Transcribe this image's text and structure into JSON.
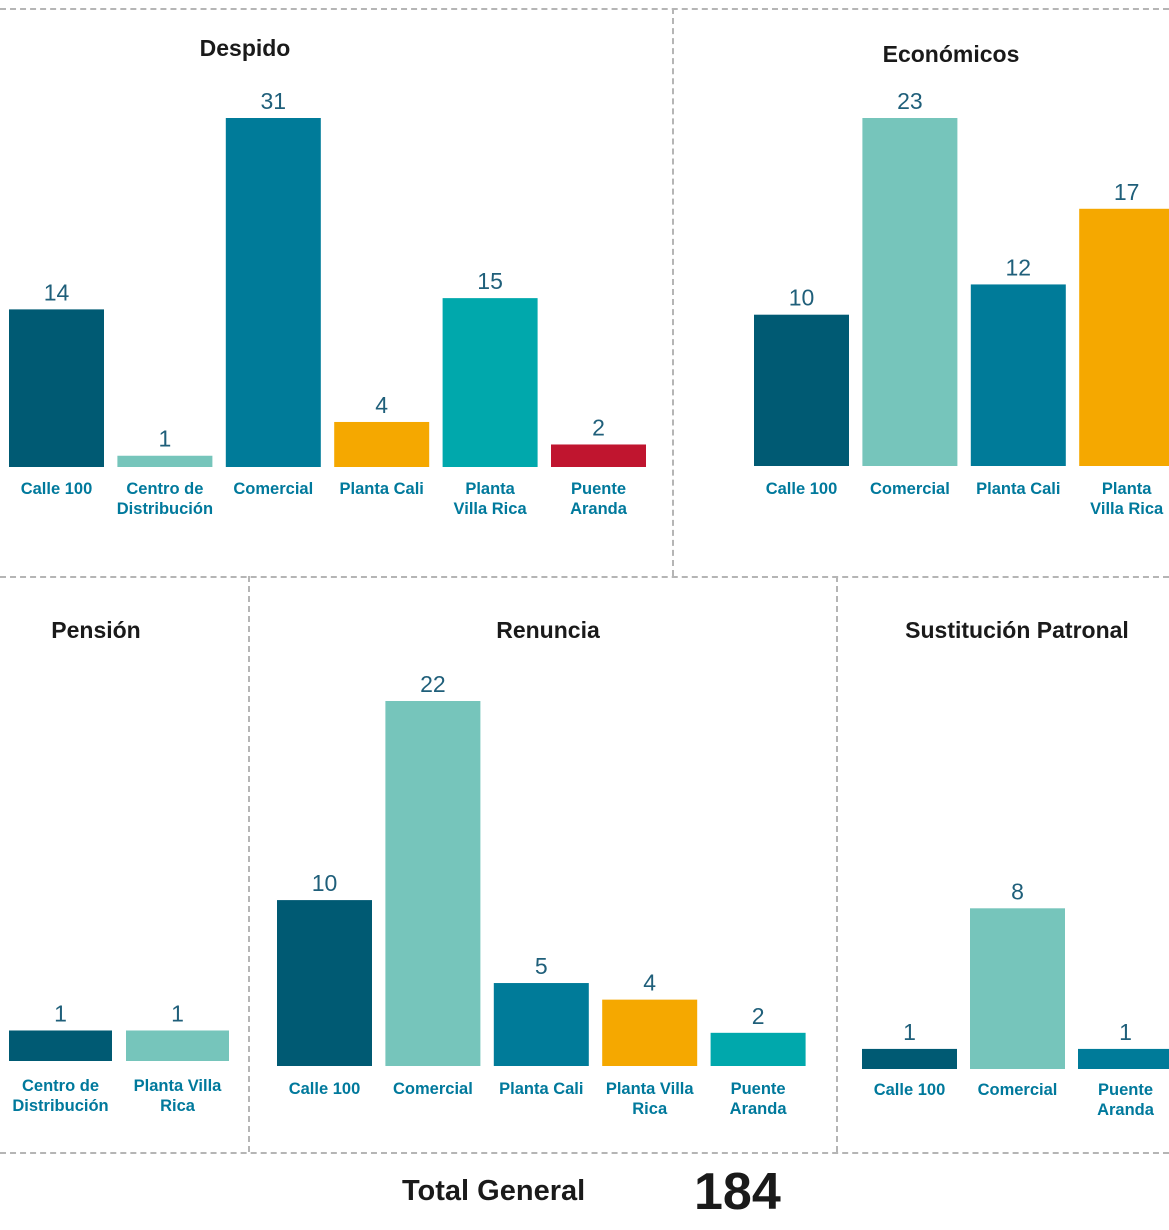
{
  "colors": {
    "Calle 100": "#005a73",
    "Centro de Distribución": "#76c5bb",
    "Comercial": "#007b99",
    "Planta Cali": "#f5a800",
    "Planta Villa Rica": "#00a8ac",
    "Puente Aranda": "#c0152f",
    "value_label": "#1f5f7a",
    "category_label": "#00799c",
    "title": "#1a1a1a"
  },
  "chart_data": [
    {
      "type": "bar",
      "title": "Despido",
      "categories": [
        "Calle 100",
        "Centro de Distribución",
        "Comercial",
        "Planta Cali",
        "Planta Villa Rica",
        "Puente Aranda"
      ],
      "category_lines": [
        [
          "Calle 100"
        ],
        [
          "Centro de",
          "Distribución"
        ],
        [
          "Comercial"
        ],
        [
          "Planta Cali"
        ],
        [
          "Planta",
          "Villa Rica"
        ],
        [
          "Puente",
          "Aranda"
        ]
      ],
      "values": [
        14,
        1,
        31,
        4,
        15,
        2
      ],
      "color_keys": [
        "Calle 100",
        "Centro de Distribución",
        "Comercial",
        "Planta Cali",
        "Planta Villa Rica",
        "Puente Aranda"
      ],
      "ylim": [
        0,
        31
      ],
      "grid": false
    },
    {
      "type": "bar",
      "title": "Económicos",
      "categories": [
        "Calle 100",
        "Comercial",
        "Planta Cali",
        "Planta Villa Rica"
      ],
      "category_lines": [
        [
          "Calle 100"
        ],
        [
          "Comercial"
        ],
        [
          "Planta Cali"
        ],
        [
          "Planta",
          "Villa Rica"
        ]
      ],
      "values": [
        10,
        23,
        12,
        17
      ],
      "color_keys": [
        "Calle 100",
        "Centro de Distribución",
        "Comercial",
        "Planta Cali"
      ],
      "ylim": [
        0,
        23
      ],
      "grid": false
    },
    {
      "type": "bar",
      "title": "Pensión",
      "categories": [
        "Centro de Distribución",
        "Planta Villa Rica"
      ],
      "category_lines": [
        [
          "Centro de",
          "Distribución"
        ],
        [
          "Planta Villa",
          "Rica"
        ]
      ],
      "values": [
        1,
        1
      ],
      "color_keys": [
        "Calle 100",
        "Centro de Distribución"
      ],
      "ylim": [
        0,
        11.5
      ],
      "grid": false
    },
    {
      "type": "bar",
      "title": "Renuncia",
      "categories": [
        "Calle 100",
        "Comercial",
        "Planta Cali",
        "Planta Villa Rica",
        "Puente Aranda"
      ],
      "category_lines": [
        [
          "Calle 100"
        ],
        [
          "Comercial"
        ],
        [
          "Planta Cali"
        ],
        [
          "Planta Villa",
          "Rica"
        ],
        [
          "Puente",
          "Aranda"
        ]
      ],
      "values": [
        10,
        22,
        5,
        4,
        2
      ],
      "color_keys": [
        "Calle 100",
        "Centro de Distribución",
        "Comercial",
        "Planta Cali",
        "Planta Villa Rica"
      ],
      "ylim": [
        0,
        22
      ],
      "grid": false
    },
    {
      "type": "bar",
      "title": "Sustitución Patronal",
      "categories": [
        "Calle 100",
        "Comercial",
        "Puente Aranda"
      ],
      "category_lines": [
        [
          "Calle 100"
        ],
        [
          "Comercial"
        ],
        [
          "Puente",
          "Aranda"
        ]
      ],
      "values": [
        1,
        8,
        1
      ],
      "color_keys": [
        "Calle 100",
        "Centro de Distribución",
        "Comercial"
      ],
      "ylim": [
        0,
        11.5
      ],
      "grid": false
    }
  ],
  "footer": {
    "total_label": "Total General",
    "total_value": "184"
  }
}
